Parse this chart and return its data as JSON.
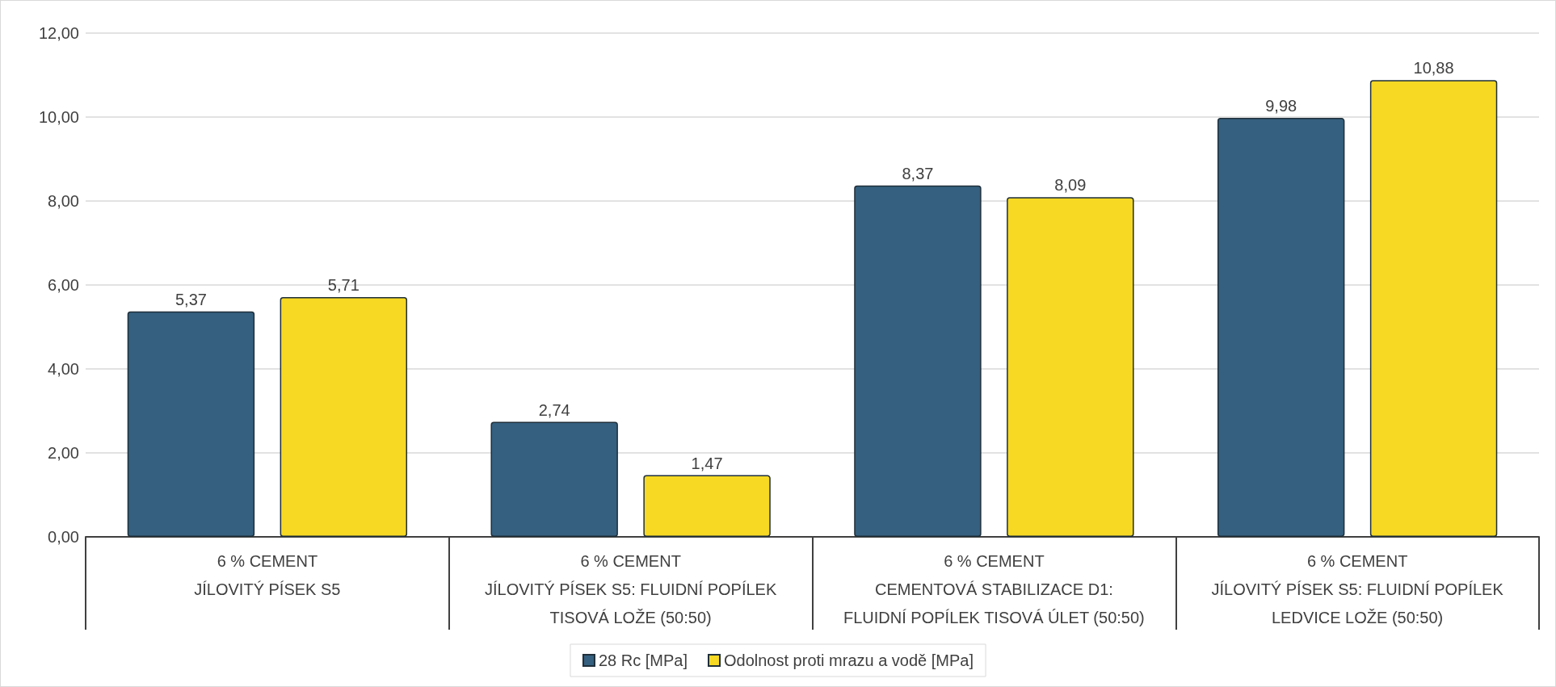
{
  "chart_data": {
    "type": "bar",
    "categories": [
      "6 % CEMENT\nJÍLOVITÝ PÍSEK S5",
      "6 % CEMENT\nJÍLOVITÝ PÍSEK S5: FLUIDNÍ POPÍLEK\nTISOVÁ LOŽE (50:50)",
      "6 % CEMENT\nCEMENTOVÁ STABILIZACE D1:\nFLUIDNÍ POPÍLEK TISOVÁ ÚLET (50:50)",
      "6 % CEMENT\nJÍLOVITÝ PÍSEK S5: FLUIDNÍ POPÍLEK\nLEDVICE LOŽE (50:50)"
    ],
    "series": [
      {
        "name": "28 Rc [MPa]",
        "color": "#35607f",
        "values": [
          5.37,
          2.74,
          8.37,
          9.98
        ],
        "value_labels": [
          "5,37",
          "2,74",
          "8,37",
          "9,98"
        ]
      },
      {
        "name": "Odolnost proti mrazu a vodě [MPa]",
        "color": "#f7d924",
        "values": [
          5.71,
          1.47,
          8.09,
          10.88
        ],
        "value_labels": [
          "5,71",
          "1,47",
          "8,09",
          "10,88"
        ]
      }
    ],
    "ylim": [
      0,
      12
    ],
    "yticks": [
      {
        "value": 0,
        "label": "0,00"
      },
      {
        "value": 2,
        "label": "2,00"
      },
      {
        "value": 4,
        "label": "4,00"
      },
      {
        "value": 6,
        "label": "6,00"
      },
      {
        "value": 8,
        "label": "8,00"
      },
      {
        "value": 10,
        "label": "10,00"
      },
      {
        "value": 12,
        "label": "12,00"
      }
    ],
    "grid": "y",
    "legend": "bottom"
  }
}
